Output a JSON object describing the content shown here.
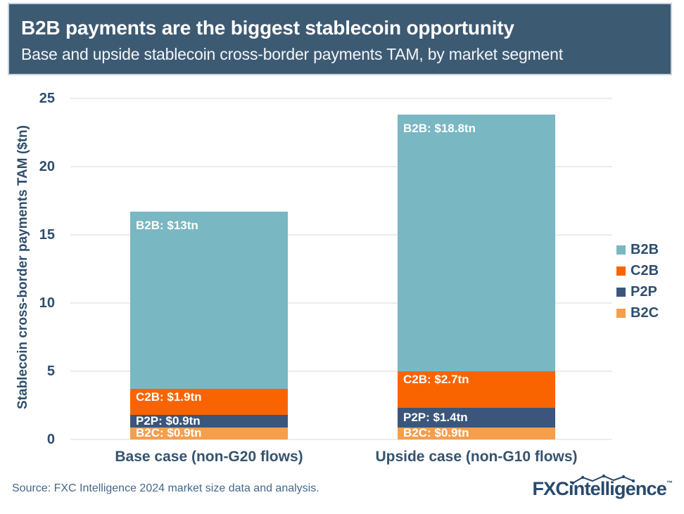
{
  "header": {
    "title": "B2B payments are the biggest stablecoin opportunity",
    "subtitle": "Base and upside stablecoin cross-border payments TAM, by market segment"
  },
  "chart_data": {
    "type": "bar",
    "stacked": true,
    "title": "B2B payments are the biggest stablecoin opportunity",
    "subtitle": "Base and upside stablecoin cross-border payments TAM, by market segment",
    "categories": [
      "Base case (non-G20 flows)",
      "Upside case (non-G10 flows)"
    ],
    "series": [
      {
        "name": "B2C",
        "color": "#F59E4C",
        "values": [
          0.9,
          0.9
        ],
        "segment_labels": [
          "B2C: $0.9tn",
          "B2C: $0.9tn"
        ]
      },
      {
        "name": "P2P",
        "color": "#3B567A",
        "values": [
          0.9,
          1.4
        ],
        "segment_labels": [
          "P2P: $0.9tn",
          "P2P: $1.4tn"
        ]
      },
      {
        "name": "C2B",
        "color": "#FA6400",
        "values": [
          1.9,
          2.7
        ],
        "segment_labels": [
          "C2B: $1.9tn",
          "C2B: $2.7tn"
        ]
      },
      {
        "name": "B2B",
        "color": "#79B7C2",
        "values": [
          13,
          18.8
        ],
        "segment_labels": [
          "B2B: $13tn",
          "B2B: $18.8tn"
        ]
      }
    ],
    "totals": [
      16.7,
      23.8
    ],
    "ylabel": "Stablecoin cross-border payments TAM ($tn)",
    "yticks": [
      0,
      5,
      10,
      15,
      20,
      25
    ],
    "ylim": [
      0,
      25
    ],
    "grid": true,
    "legend": {
      "position": "right",
      "items": [
        {
          "label": "B2B",
          "color": "#79B7C2"
        },
        {
          "label": "C2B",
          "color": "#FA6400"
        },
        {
          "label": "P2P",
          "color": "#3B567A"
        },
        {
          "label": "B2C",
          "color": "#F59E4C"
        }
      ]
    }
  },
  "footer": {
    "source": "Source: FXC Intelligence 2024 market size data and analysis.",
    "logo_bold": "FXC",
    "logo_rest": "intelligence",
    "logo_tm": "™"
  },
  "colors": {
    "header_bg": "#3D5A73",
    "text_navy": "#2E4E6E",
    "gridline": "#ECECEC"
  }
}
